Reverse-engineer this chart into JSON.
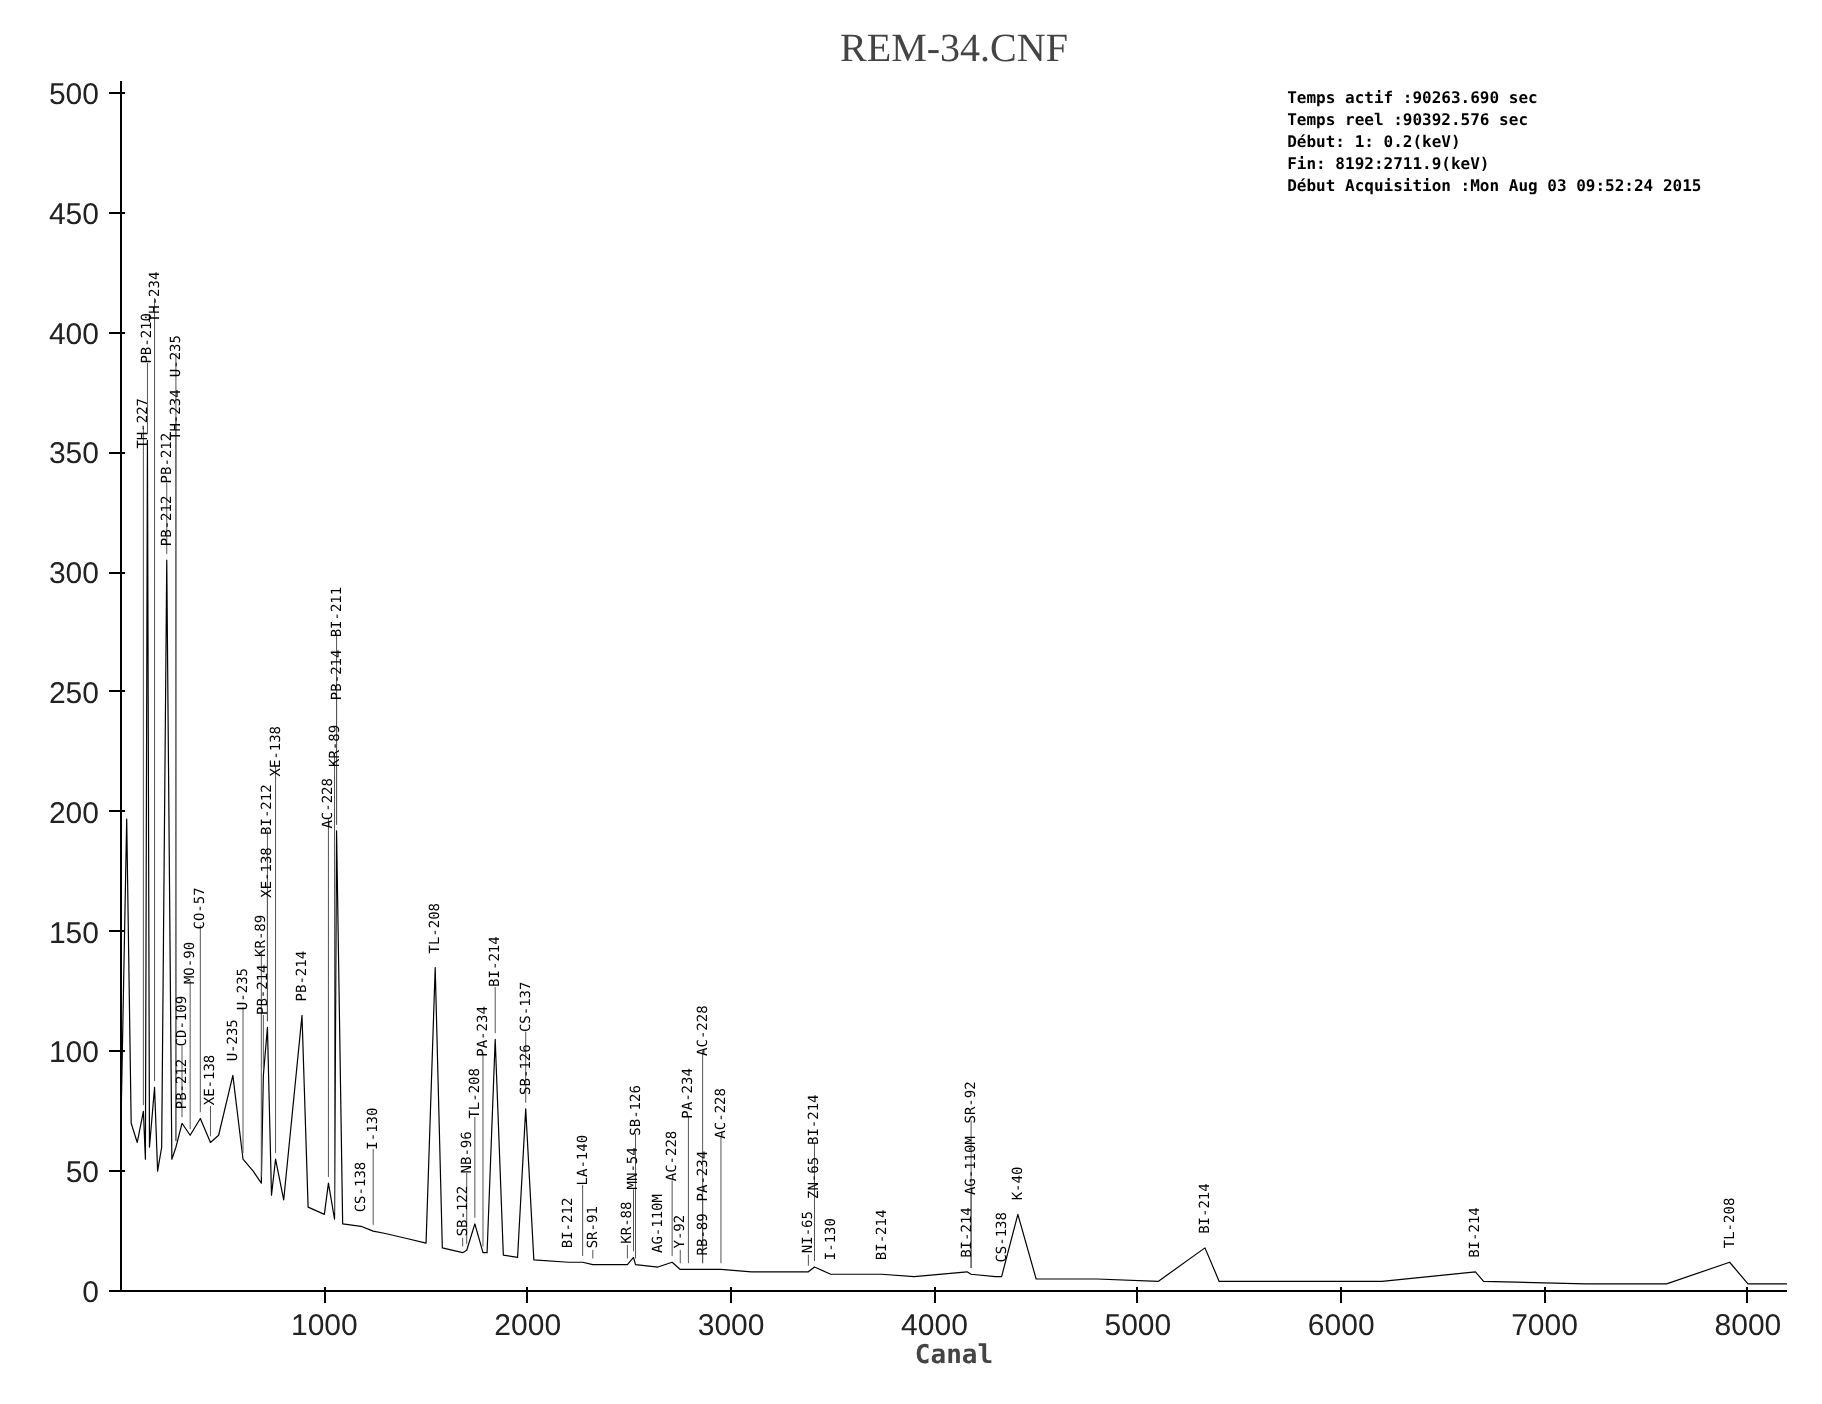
{
  "chart_data": {
    "type": "line",
    "title": "REM-34.CNF",
    "xlabel": "Canal",
    "x": [
      0,
      28,
      50,
      80,
      110,
      120,
      130,
      140,
      165,
      180,
      200,
      225,
      250,
      270,
      300,
      340,
      390,
      440,
      480,
      550,
      600,
      650,
      690,
      700,
      720,
      740,
      760,
      800,
      890,
      920,
      1000,
      1020,
      1050,
      1060,
      1090,
      1180,
      1240,
      1300,
      1400,
      1500,
      1545,
      1580,
      1680,
      1700,
      1740,
      1780,
      1800,
      1840,
      1880,
      1950,
      1990,
      2030,
      2200,
      2270,
      2320,
      2490,
      2520,
      2530,
      2640,
      2710,
      2750,
      2790,
      2860,
      2950,
      3100,
      3300,
      3380,
      3410,
      3490,
      3700,
      3740,
      3900,
      4160,
      4180,
      4300,
      4330,
      4410,
      4500,
      4800,
      5100,
      5330,
      5400,
      5800,
      6200,
      6660,
      6700,
      7200,
      7600,
      7910,
      8000,
      8192
    ],
    "series": [
      {
        "color": "#000000",
        "values": [
          70,
          197,
          70,
          62,
          75,
          55,
          355,
          60,
          85,
          50,
          60,
          305,
          55,
          60,
          70,
          65,
          72,
          62,
          65,
          90,
          55,
          50,
          45,
          90,
          110,
          40,
          55,
          38,
          115,
          35,
          32,
          45,
          30,
          192,
          28,
          27,
          25,
          24,
          22,
          20,
          135,
          18,
          16,
          17,
          28,
          16,
          16,
          105,
          15,
          14,
          76,
          13,
          12,
          12,
          11,
          11,
          14,
          11,
          10,
          12,
          9,
          9,
          9,
          9,
          8,
          8,
          8,
          10,
          7,
          7,
          7,
          6,
          8,
          7,
          6,
          6,
          32,
          5,
          5,
          4,
          18,
          4,
          4,
          4,
          8,
          4,
          3,
          3,
          12,
          3,
          3
        ]
      }
    ],
    "xlim": [
      0,
      8192
    ],
    "ylim": [
      0,
      505
    ],
    "xticks": [
      1000,
      2000,
      3000,
      4000,
      5000,
      6000,
      7000,
      8000
    ],
    "yticks": [
      0,
      50,
      100,
      150,
      200,
      250,
      300,
      350,
      400,
      450,
      500
    ],
    "grid": false,
    "marker": "none",
    "line_style": "solid",
    "annotations": [
      "Temps actif   :90263.690 sec",
      "Temps reel :90392.576 sec",
      "Début:    1:   0.2(keV)",
      "Fin: 8192:2711.9(keV)",
      "Début Acquisition :Mon Aug 03 09:52:24 2015",
      {
        "text": "TH-227",
        "x": 110,
        "y": 75
      },
      {
        "text": "PB-210",
        "x": 130,
        "y": 355
      },
      {
        "text": "TH-234",
        "x": 165,
        "y": 85
      },
      {
        "text": "PB-212",
        "x": 225,
        "y": 305
      },
      {
        "text": "PB-212",
        "x": 225,
        "y": 305
      },
      {
        "text": "TH-234",
        "x": 270,
        "y": 60
      },
      {
        "text": "U-235",
        "x": 270,
        "y": 60
      },
      {
        "text": "PB-212",
        "x": 300,
        "y": 70
      },
      {
        "text": "CD-109",
        "x": 300,
        "y": 70
      },
      {
        "text": "MO-90",
        "x": 340,
        "y": 65
      },
      {
        "text": "CO-57",
        "x": 390,
        "y": 72
      },
      {
        "text": "XE-138",
        "x": 440,
        "y": 62
      },
      {
        "text": "U-235",
        "x": 550,
        "y": 90
      },
      {
        "text": "U-235",
        "x": 600,
        "y": 55
      },
      {
        "text": "KR-89",
        "x": 690,
        "y": 45
      },
      {
        "text": "PB-214",
        "x": 700,
        "y": 90
      },
      {
        "text": "XE-138",
        "x": 720,
        "y": 110
      },
      {
        "text": "BI-212",
        "x": 720,
        "y": 110
      },
      {
        "text": "XE-138",
        "x": 760,
        "y": 55
      },
      {
        "text": "PB-214",
        "x": 890,
        "y": 115
      },
      {
        "text": "AC-228",
        "x": 1020,
        "y": 45
      },
      {
        "text": "KR-89",
        "x": 1050,
        "y": 30
      },
      {
        "text": "PB-214",
        "x": 1060,
        "y": 192
      },
      {
        "text": "BI-211",
        "x": 1060,
        "y": 192
      },
      {
        "text": "CS-138",
        "x": 1180,
        "y": 27
      },
      {
        "text": "I-130",
        "x": 1240,
        "y": 25
      },
      {
        "text": "TL-208",
        "x": 1545,
        "y": 135
      },
      {
        "text": "SB-122",
        "x": 1680,
        "y": 16
      },
      {
        "text": "NB-96",
        "x": 1700,
        "y": 17
      },
      {
        "text": "TL-208",
        "x": 1740,
        "y": 28
      },
      {
        "text": "PA-234",
        "x": 1780,
        "y": 16
      },
      {
        "text": "BI-214",
        "x": 1840,
        "y": 105
      },
      {
        "text": "SB-126",
        "x": 1990,
        "y": 76
      },
      {
        "text": "CS-137",
        "x": 1990,
        "y": 76
      },
      {
        "text": "BI-212",
        "x": 2200,
        "y": 12
      },
      {
        "text": "LA-140",
        "x": 2270,
        "y": 12
      },
      {
        "text": "SR-91",
        "x": 2320,
        "y": 11
      },
      {
        "text": "KR-88",
        "x": 2490,
        "y": 11
      },
      {
        "text": "MN-54",
        "x": 2520,
        "y": 14
      },
      {
        "text": "SB-126",
        "x": 2530,
        "y": 11
      },
      {
        "text": "AG-110M",
        "x": 2640,
        "y": 10
      },
      {
        "text": "AC-228",
        "x": 2710,
        "y": 12
      },
      {
        "text": "Y-92",
        "x": 2750,
        "y": 9
      },
      {
        "text": "PA-234",
        "x": 2790,
        "y": 9
      },
      {
        "text": "RB-89",
        "x": 2860,
        "y": 9
      },
      {
        "text": "PA-234",
        "x": 2860,
        "y": 9
      },
      {
        "text": "AC-228",
        "x": 2860,
        "y": 9
      },
      {
        "text": "AC-228",
        "x": 2950,
        "y": 9
      },
      {
        "text": "NI-65",
        "x": 3380,
        "y": 8
      },
      {
        "text": "ZN-65",
        "x": 3410,
        "y": 10
      },
      {
        "text": "BI-214",
        "x": 3410,
        "y": 10
      },
      {
        "text": "I-130",
        "x": 3490,
        "y": 7
      },
      {
        "text": "BI-214",
        "x": 3740,
        "y": 7
      },
      {
        "text": "BI-214",
        "x": 4160,
        "y": 8
      },
      {
        "text": "AG-110M",
        "x": 4180,
        "y": 7
      },
      {
        "text": "SR-92",
        "x": 4180,
        "y": 7
      },
      {
        "text": "CS-138",
        "x": 4330,
        "y": 6
      },
      {
        "text": "K-40",
        "x": 4410,
        "y": 32
      },
      {
        "text": "BI-214",
        "x": 5330,
        "y": 18
      },
      {
        "text": "BI-214",
        "x": 6660,
        "y": 8
      },
      {
        "text": "TL-208",
        "x": 7910,
        "y": 12
      }
    ]
  }
}
